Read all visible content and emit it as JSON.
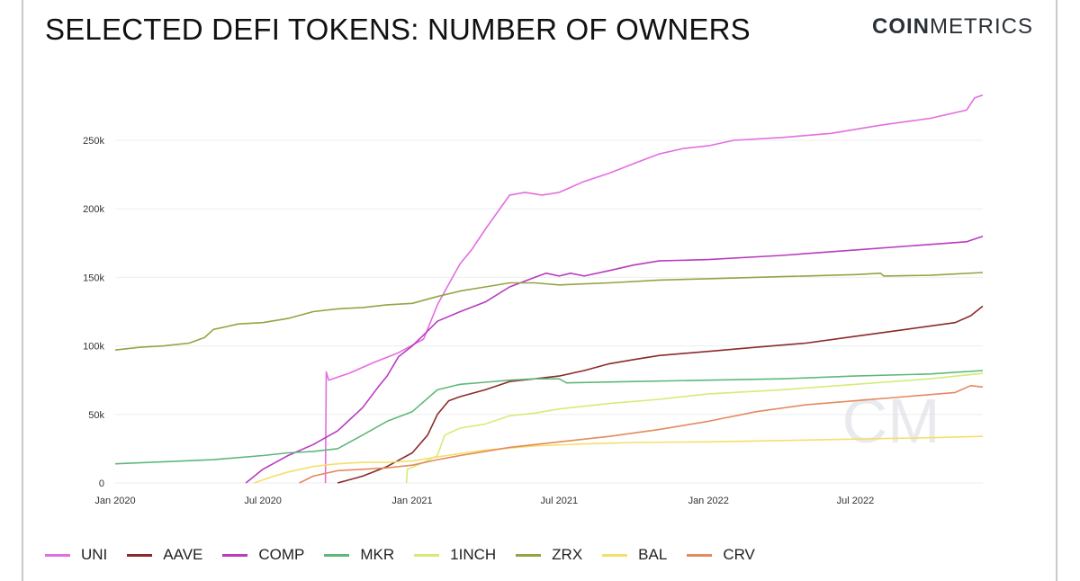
{
  "header": {
    "title": "SELECTED DEFI TOKENS: NUMBER OF OWNERS",
    "logo_bold": "COIN",
    "logo_light": "METRICS"
  },
  "watermark": "CM",
  "chart_data": {
    "type": "line",
    "title": "SELECTED DEFI TOKENS: NUMBER OF OWNERS",
    "xlabel": "",
    "ylabel": "",
    "xlim": [
      "2020-01-01",
      "2022-12-05"
    ],
    "ylim": [
      0,
      290000
    ],
    "x_ticks": [
      {
        "date": "2020-01-01",
        "label": "Jan 2020"
      },
      {
        "date": "2020-07-01",
        "label": "Jul 2020"
      },
      {
        "date": "2021-01-01",
        "label": "Jan 2021"
      },
      {
        "date": "2021-07-01",
        "label": "Jul 2021"
      },
      {
        "date": "2022-01-01",
        "label": "Jan 2022"
      },
      {
        "date": "2022-07-01",
        "label": "Jul 2022"
      }
    ],
    "y_ticks": [
      {
        "value": 0,
        "label": "0"
      },
      {
        "value": 50000,
        "label": "50k"
      },
      {
        "value": 100000,
        "label": "100k"
      },
      {
        "value": 150000,
        "label": "150k"
      },
      {
        "value": 200000,
        "label": "200k"
      },
      {
        "value": 250000,
        "label": "250k"
      }
    ],
    "grid": "horizontal",
    "legend_position": "bottom",
    "series": [
      {
        "name": "UNI",
        "color": "#e36ee0",
        "points": [
          [
            "2020-09-16",
            0
          ],
          [
            "2020-09-17",
            81000
          ],
          [
            "2020-09-20",
            75000
          ],
          [
            "2020-10-15",
            80000
          ],
          [
            "2020-11-15",
            88000
          ],
          [
            "2020-12-15",
            95000
          ],
          [
            "2021-01-15",
            105000
          ],
          [
            "2021-02-01",
            130000
          ],
          [
            "2021-02-15",
            145000
          ],
          [
            "2021-03-01",
            160000
          ],
          [
            "2021-03-15",
            170000
          ],
          [
            "2021-04-01",
            185000
          ],
          [
            "2021-05-01",
            210000
          ],
          [
            "2021-05-20",
            212000
          ],
          [
            "2021-06-10",
            210000
          ],
          [
            "2021-07-01",
            212000
          ],
          [
            "2021-08-01",
            220000
          ],
          [
            "2021-09-01",
            226000
          ],
          [
            "2021-10-01",
            233000
          ],
          [
            "2021-11-01",
            240000
          ],
          [
            "2021-12-01",
            244000
          ],
          [
            "2022-01-01",
            246000
          ],
          [
            "2022-02-01",
            250000
          ],
          [
            "2022-04-01",
            252000
          ],
          [
            "2022-06-01",
            255000
          ],
          [
            "2022-08-01",
            261000
          ],
          [
            "2022-10-01",
            266000
          ],
          [
            "2022-11-15",
            272000
          ],
          [
            "2022-11-25",
            281000
          ],
          [
            "2022-12-05",
            283000
          ]
        ]
      },
      {
        "name": "AAVE",
        "color": "#8b2a2a",
        "points": [
          [
            "2020-10-01",
            0
          ],
          [
            "2020-11-01",
            5000
          ],
          [
            "2020-12-01",
            12000
          ],
          [
            "2021-01-01",
            22000
          ],
          [
            "2021-01-20",
            35000
          ],
          [
            "2021-02-01",
            50000
          ],
          [
            "2021-02-15",
            60000
          ],
          [
            "2021-03-01",
            63000
          ],
          [
            "2021-04-01",
            68000
          ],
          [
            "2021-05-01",
            74000
          ],
          [
            "2021-06-01",
            76000
          ],
          [
            "2021-07-01",
            78000
          ],
          [
            "2021-08-01",
            82000
          ],
          [
            "2021-09-01",
            87000
          ],
          [
            "2021-10-01",
            90000
          ],
          [
            "2021-11-01",
            93000
          ],
          [
            "2022-01-01",
            96000
          ],
          [
            "2022-03-01",
            99000
          ],
          [
            "2022-05-01",
            102000
          ],
          [
            "2022-07-01",
            107000
          ],
          [
            "2022-09-01",
            112000
          ],
          [
            "2022-11-01",
            117000
          ],
          [
            "2022-11-20",
            122000
          ],
          [
            "2022-12-05",
            129000
          ]
        ]
      },
      {
        "name": "COMP",
        "color": "#b83bc0",
        "points": [
          [
            "2020-06-10",
            0
          ],
          [
            "2020-07-01",
            10000
          ],
          [
            "2020-08-01",
            20000
          ],
          [
            "2020-09-01",
            28000
          ],
          [
            "2020-10-01",
            38000
          ],
          [
            "2020-11-01",
            55000
          ],
          [
            "2020-11-20",
            70000
          ],
          [
            "2020-12-01",
            78000
          ],
          [
            "2020-12-15",
            92000
          ],
          [
            "2021-01-01",
            100000
          ],
          [
            "2021-01-15",
            108000
          ],
          [
            "2021-02-01",
            118000
          ],
          [
            "2021-03-01",
            125000
          ],
          [
            "2021-04-01",
            132000
          ],
          [
            "2021-05-01",
            143000
          ],
          [
            "2021-06-01",
            150000
          ],
          [
            "2021-06-15",
            153000
          ],
          [
            "2021-07-01",
            151000
          ],
          [
            "2021-07-15",
            153000
          ],
          [
            "2021-08-01",
            151000
          ],
          [
            "2021-09-01",
            155000
          ],
          [
            "2021-10-01",
            159000
          ],
          [
            "2021-11-01",
            162000
          ],
          [
            "2022-01-01",
            163000
          ],
          [
            "2022-04-01",
            166000
          ],
          [
            "2022-07-01",
            170000
          ],
          [
            "2022-10-01",
            174000
          ],
          [
            "2022-11-15",
            176000
          ],
          [
            "2022-12-05",
            180000
          ]
        ]
      },
      {
        "name": "MKR",
        "color": "#5fb87a",
        "points": [
          [
            "2020-01-01",
            14000
          ],
          [
            "2020-03-01",
            15500
          ],
          [
            "2020-05-01",
            17000
          ],
          [
            "2020-07-01",
            20000
          ],
          [
            "2020-08-01",
            22000
          ],
          [
            "2020-09-01",
            23000
          ],
          [
            "2020-10-01",
            25000
          ],
          [
            "2020-11-01",
            35000
          ],
          [
            "2020-12-01",
            45000
          ],
          [
            "2021-01-01",
            52000
          ],
          [
            "2021-02-01",
            68000
          ],
          [
            "2021-03-01",
            72000
          ],
          [
            "2021-04-01",
            73500
          ],
          [
            "2021-05-01",
            75000
          ],
          [
            "2021-06-01",
            76000
          ],
          [
            "2021-07-01",
            76000
          ],
          [
            "2021-07-10",
            73000
          ],
          [
            "2021-10-01",
            74000
          ],
          [
            "2022-01-01",
            75000
          ],
          [
            "2022-04-01",
            76000
          ],
          [
            "2022-07-01",
            78000
          ],
          [
            "2022-10-01",
            79500
          ],
          [
            "2022-12-05",
            82000
          ]
        ]
      },
      {
        "name": "1INCH",
        "color": "#d4ec77",
        "points": [
          [
            "2020-12-25",
            0
          ],
          [
            "2020-12-26",
            10000
          ],
          [
            "2021-01-15",
            15000
          ],
          [
            "2021-02-01",
            20000
          ],
          [
            "2021-02-10",
            35000
          ],
          [
            "2021-03-01",
            40000
          ],
          [
            "2021-04-01",
            43000
          ],
          [
            "2021-05-01",
            49000
          ],
          [
            "2021-06-01",
            51000
          ],
          [
            "2021-07-01",
            54000
          ],
          [
            "2021-09-01",
            58000
          ],
          [
            "2021-11-01",
            61000
          ],
          [
            "2022-01-01",
            65000
          ],
          [
            "2022-04-01",
            68000
          ],
          [
            "2022-07-01",
            72000
          ],
          [
            "2022-10-01",
            76000
          ],
          [
            "2022-12-05",
            80000
          ]
        ]
      },
      {
        "name": "ZRX",
        "color": "#93a443",
        "points": [
          [
            "2020-01-01",
            97000
          ],
          [
            "2020-02-01",
            99000
          ],
          [
            "2020-03-01",
            100000
          ],
          [
            "2020-04-01",
            102000
          ],
          [
            "2020-04-20",
            106000
          ],
          [
            "2020-05-01",
            112000
          ],
          [
            "2020-06-01",
            116000
          ],
          [
            "2020-07-01",
            117000
          ],
          [
            "2020-08-01",
            120000
          ],
          [
            "2020-09-01",
            125000
          ],
          [
            "2020-10-01",
            127000
          ],
          [
            "2020-11-01",
            128000
          ],
          [
            "2020-12-01",
            130000
          ],
          [
            "2021-01-01",
            131000
          ],
          [
            "2021-02-01",
            136000
          ],
          [
            "2021-03-01",
            140000
          ],
          [
            "2021-04-01",
            143000
          ],
          [
            "2021-05-01",
            146000
          ],
          [
            "2021-06-01",
            146000
          ],
          [
            "2021-07-01",
            144500
          ],
          [
            "2021-09-01",
            146000
          ],
          [
            "2021-11-01",
            148000
          ],
          [
            "2022-01-01",
            149000
          ],
          [
            "2022-04-01",
            150500
          ],
          [
            "2022-07-01",
            152000
          ],
          [
            "2022-08-01",
            153000
          ],
          [
            "2022-08-05",
            151000
          ],
          [
            "2022-10-01",
            151500
          ],
          [
            "2022-12-05",
            153500
          ]
        ]
      },
      {
        "name": "BAL",
        "color": "#f4df6b",
        "points": [
          [
            "2020-06-20",
            0
          ],
          [
            "2020-07-15",
            5000
          ],
          [
            "2020-08-01",
            8000
          ],
          [
            "2020-09-01",
            12000
          ],
          [
            "2020-10-01",
            14000
          ],
          [
            "2020-11-01",
            15000
          ],
          [
            "2020-12-01",
            15000
          ],
          [
            "2021-01-01",
            16000
          ],
          [
            "2021-02-01",
            19000
          ],
          [
            "2021-04-01",
            24000
          ],
          [
            "2021-06-01",
            27000
          ],
          [
            "2021-08-01",
            28500
          ],
          [
            "2021-10-01",
            29500
          ],
          [
            "2022-01-01",
            30000
          ],
          [
            "2022-04-01",
            31000
          ],
          [
            "2022-07-01",
            32000
          ],
          [
            "2022-10-01",
            33000
          ],
          [
            "2022-12-05",
            34000
          ]
        ]
      },
      {
        "name": "CRV",
        "color": "#e48a5e",
        "points": [
          [
            "2020-08-15",
            0
          ],
          [
            "2020-09-01",
            5000
          ],
          [
            "2020-10-01",
            9000
          ],
          [
            "2020-11-01",
            10000
          ],
          [
            "2020-12-01",
            11000
          ],
          [
            "2021-01-01",
            13000
          ],
          [
            "2021-02-01",
            17000
          ],
          [
            "2021-03-01",
            20000
          ],
          [
            "2021-04-01",
            23000
          ],
          [
            "2021-05-01",
            26000
          ],
          [
            "2021-07-01",
            30000
          ],
          [
            "2021-09-01",
            34000
          ],
          [
            "2021-11-01",
            39000
          ],
          [
            "2022-01-01",
            45000
          ],
          [
            "2022-03-01",
            52000
          ],
          [
            "2022-05-01",
            57000
          ],
          [
            "2022-07-01",
            60000
          ],
          [
            "2022-09-01",
            63000
          ],
          [
            "2022-11-01",
            66000
          ],
          [
            "2022-11-20",
            71000
          ],
          [
            "2022-12-05",
            70000
          ]
        ]
      }
    ]
  }
}
